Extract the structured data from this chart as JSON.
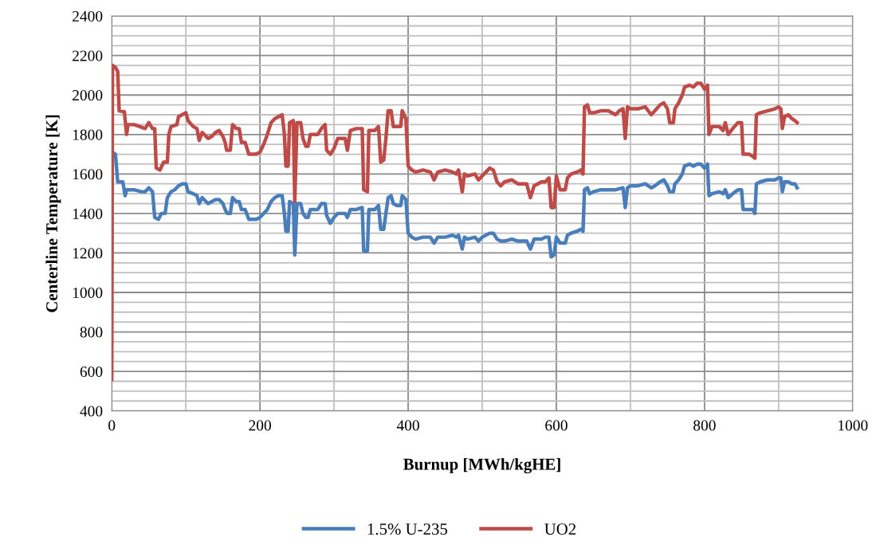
{
  "chart_data": {
    "type": "line",
    "xlabel": "Burnup [MWh/kgHE]",
    "ylabel": "Centerline Temperature [K]",
    "xlim": [
      0,
      1000
    ],
    "ylim": [
      400,
      2400
    ],
    "xticks": [
      0,
      {
        "value": 100,
        "label": null
      },
      200,
      {
        "value": 300,
        "label": null
      },
      400,
      {
        "value": 500,
        "label": null
      },
      600,
      {
        "value": 700,
        "label": null
      },
      800,
      {
        "value": 900,
        "label": null
      },
      1000
    ],
    "yticks": [
      400,
      {
        "value": 450,
        "label": null
      },
      {
        "value": 500,
        "label": null
      },
      {
        "value": 550,
        "label": null
      },
      600,
      {
        "value": 650,
        "label": null
      },
      {
        "value": 700,
        "label": null
      },
      {
        "value": 750,
        "label": null
      },
      800,
      {
        "value": 850,
        "label": null
      },
      {
        "value": 900,
        "label": null
      },
      {
        "value": 950,
        "label": null
      },
      1000,
      {
        "value": 1050,
        "label": null
      },
      {
        "value": 1100,
        "label": null
      },
      {
        "value": 1150,
        "label": null
      },
      1200,
      {
        "value": 1250,
        "label": null
      },
      {
        "value": 1300,
        "label": null
      },
      {
        "value": 1350,
        "label": null
      },
      1400,
      {
        "value": 1450,
        "label": null
      },
      {
        "value": 1500,
        "label": null
      },
      {
        "value": 1550,
        "label": null
      },
      1600,
      {
        "value": 1650,
        "label": null
      },
      {
        "value": 1700,
        "label": null
      },
      {
        "value": 1750,
        "label": null
      },
      1800,
      {
        "value": 1850,
        "label": null
      },
      {
        "value": 1900,
        "label": null
      },
      {
        "value": 1950,
        "label": null
      },
      2000,
      {
        "value": 2050,
        "label": null
      },
      {
        "value": 2100,
        "label": null
      },
      {
        "value": 2150,
        "label": null
      },
      2200,
      {
        "value": 2250,
        "label": null
      },
      {
        "value": 2300,
        "label": null
      },
      {
        "value": 2350,
        "label": null
      },
      2400
    ],
    "grid": true,
    "legend": "bottom",
    "marker": "none",
    "line_style": "solid",
    "series": [
      {
        "name": "1.5% U-235",
        "color": "#4a7ebb",
        "x": [
          1,
          5,
          8,
          15,
          18,
          20,
          30,
          40,
          45,
          50,
          55,
          58,
          63,
          67,
          72,
          75,
          80,
          85,
          90,
          95,
          100,
          103,
          110,
          115,
          118,
          122,
          130,
          135,
          140,
          145,
          150,
          153,
          156,
          160,
          163,
          168,
          172,
          175,
          180,
          185,
          195,
          200,
          205,
          210,
          215,
          220,
          225,
          230,
          233,
          235,
          238,
          240,
          245,
          247,
          250,
          255,
          258,
          262,
          265,
          268,
          278,
          283,
          288,
          290,
          295,
          300,
          305,
          315,
          318,
          322,
          330,
          338,
          340,
          345,
          347,
          355,
          360,
          363,
          367,
          370,
          373,
          377,
          380,
          385,
          390,
          392,
          397,
          400,
          405,
          410,
          420,
          430,
          435,
          440,
          450,
          460,
          465,
          468,
          473,
          476,
          480,
          490,
          495,
          500,
          505,
          510,
          515,
          520,
          525,
          530,
          540,
          548,
          560,
          565,
          570,
          580,
          585,
          590,
          593,
          597,
          600,
          605,
          612,
          615,
          620,
          628,
          633,
          636,
          638,
          642,
          645,
          650,
          660,
          670,
          680,
          690,
          693,
          696,
          700,
          710,
          720,
          728,
          733,
          740,
          745,
          750,
          753,
          758,
          760,
          765,
          770,
          773,
          780,
          785,
          790,
          795,
          800,
          804,
          806,
          810,
          820,
          825,
          828,
          832,
          838,
          845,
          850,
          852,
          865,
          868,
          870,
          875,
          885,
          895,
          900,
          903,
          905,
          908,
          913,
          918,
          922,
          925
        ],
        "values": [
          1710,
          1700,
          1560,
          1560,
          1490,
          1520,
          1520,
          1510,
          1510,
          1530,
          1510,
          1380,
          1370,
          1400,
          1400,
          1480,
          1510,
          1520,
          1540,
          1550,
          1550,
          1510,
          1500,
          1490,
          1450,
          1480,
          1450,
          1460,
          1470,
          1470,
          1450,
          1420,
          1400,
          1400,
          1480,
          1460,
          1460,
          1420,
          1420,
          1370,
          1370,
          1380,
          1400,
          1420,
          1460,
          1480,
          1490,
          1490,
          1400,
          1310,
          1310,
          1460,
          1450,
          1190,
          1450,
          1450,
          1400,
          1380,
          1380,
          1420,
          1420,
          1450,
          1450,
          1390,
          1350,
          1380,
          1400,
          1400,
          1380,
          1420,
          1420,
          1430,
          1210,
          1210,
          1420,
          1420,
          1440,
          1320,
          1320,
          1400,
          1480,
          1490,
          1450,
          1440,
          1440,
          1490,
          1470,
          1300,
          1280,
          1270,
          1280,
          1280,
          1250,
          1280,
          1280,
          1290,
          1280,
          1290,
          1220,
          1280,
          1270,
          1280,
          1260,
          1280,
          1290,
          1300,
          1300,
          1270,
          1260,
          1260,
          1270,
          1260,
          1260,
          1220,
          1270,
          1270,
          1280,
          1280,
          1180,
          1190,
          1280,
          1250,
          1250,
          1290,
          1300,
          1310,
          1320,
          1310,
          1520,
          1530,
          1500,
          1510,
          1520,
          1520,
          1520,
          1530,
          1430,
          1530,
          1540,
          1540,
          1550,
          1530,
          1540,
          1560,
          1570,
          1540,
          1510,
          1510,
          1550,
          1570,
          1600,
          1640,
          1650,
          1640,
          1650,
          1650,
          1630,
          1650,
          1490,
          1500,
          1510,
          1500,
          1520,
          1480,
          1500,
          1520,
          1520,
          1420,
          1420,
          1400,
          1550,
          1560,
          1570,
          1570,
          1580,
          1580,
          1510,
          1560,
          1560,
          1550,
          1550,
          1530
        ]
      },
      {
        "name": "UO2",
        "color": "#be4b48",
        "x": [
          0,
          1,
          5,
          8,
          10,
          17,
          20,
          22,
          30,
          38,
          45,
          50,
          55,
          58,
          60,
          65,
          70,
          75,
          77,
          80,
          88,
          90,
          95,
          100,
          103,
          110,
          115,
          118,
          122,
          130,
          135,
          140,
          145,
          150,
          153,
          155,
          160,
          163,
          168,
          172,
          175,
          180,
          185,
          195,
          200,
          205,
          210,
          215,
          220,
          225,
          230,
          233,
          235,
          238,
          240,
          245,
          247,
          250,
          255,
          258,
          262,
          265,
          268,
          278,
          283,
          288,
          290,
          295,
          300,
          305,
          315,
          318,
          322,
          330,
          338,
          340,
          345,
          347,
          355,
          360,
          363,
          367,
          370,
          373,
          377,
          380,
          385,
          390,
          392,
          397,
          400,
          405,
          410,
          420,
          430,
          435,
          440,
          450,
          460,
          465,
          468,
          473,
          476,
          480,
          490,
          495,
          500,
          505,
          510,
          515,
          520,
          525,
          530,
          540,
          548,
          560,
          565,
          570,
          580,
          585,
          590,
          593,
          597,
          600,
          605,
          612,
          615,
          620,
          628,
          633,
          636,
          638,
          642,
          645,
          650,
          660,
          670,
          675,
          680,
          685,
          690,
          693,
          696,
          700,
          710,
          720,
          728,
          733,
          740,
          745,
          750,
          753,
          758,
          760,
          765,
          770,
          773,
          780,
          785,
          790,
          795,
          800,
          804,
          806,
          810,
          820,
          825,
          828,
          832,
          838,
          845,
          850,
          852,
          860,
          865,
          868,
          870,
          875,
          885,
          895,
          900,
          903,
          905,
          908,
          913,
          918,
          922,
          925
        ],
        "values": [
          560,
          2150,
          2140,
          2120,
          1920,
          1915,
          1800,
          1850,
          1850,
          1840,
          1830,
          1860,
          1830,
          1830,
          1630,
          1620,
          1660,
          1660,
          1800,
          1840,
          1850,
          1890,
          1900,
          1910,
          1870,
          1840,
          1830,
          1770,
          1810,
          1780,
          1790,
          1810,
          1820,
          1790,
          1760,
          1720,
          1720,
          1850,
          1830,
          1830,
          1760,
          1760,
          1700,
          1700,
          1710,
          1750,
          1800,
          1860,
          1880,
          1890,
          1900,
          1800,
          1640,
          1640,
          1860,
          1870,
          1460,
          1860,
          1860,
          1780,
          1740,
          1740,
          1800,
          1800,
          1830,
          1850,
          1720,
          1700,
          1730,
          1780,
          1780,
          1720,
          1820,
          1830,
          1830,
          1520,
          1510,
          1820,
          1820,
          1840,
          1660,
          1670,
          1780,
          1920,
          1920,
          1840,
          1840,
          1840,
          1920,
          1880,
          1640,
          1620,
          1610,
          1620,
          1610,
          1570,
          1610,
          1620,
          1610,
          1600,
          1620,
          1510,
          1600,
          1590,
          1600,
          1570,
          1590,
          1610,
          1630,
          1620,
          1560,
          1540,
          1560,
          1570,
          1550,
          1550,
          1480,
          1540,
          1560,
          1560,
          1580,
          1430,
          1430,
          1590,
          1520,
          1520,
          1580,
          1600,
          1610,
          1620,
          1600,
          1940,
          1950,
          1910,
          1910,
          1920,
          1920,
          1910,
          1900,
          1920,
          1930,
          1780,
          1940,
          1930,
          1930,
          1940,
          1900,
          1920,
          1950,
          1960,
          1930,
          1860,
          1860,
          1930,
          1960,
          2000,
          2040,
          2050,
          2040,
          2060,
          2060,
          2030,
          2050,
          1800,
          1840,
          1840,
          1820,
          1860,
          1800,
          1830,
          1860,
          1860,
          1700,
          1700,
          1690,
          1680,
          1900,
          1910,
          1920,
          1930,
          1940,
          1930,
          1830,
          1890,
          1900,
          1880,
          1870,
          1860
        ]
      }
    ]
  }
}
